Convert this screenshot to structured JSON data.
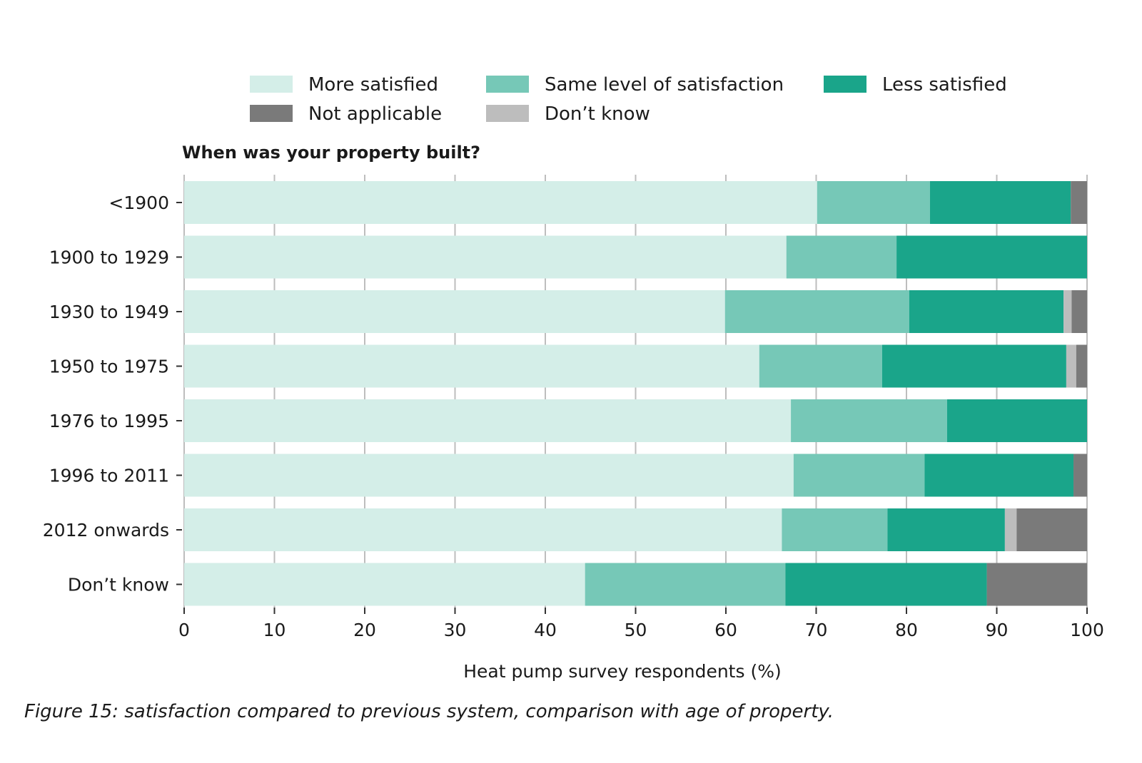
{
  "chart_data": {
    "type": "bar",
    "orientation": "horizontal",
    "stacked": true,
    "title": "When was your property built?",
    "xlabel": "Heat pump survey respondents (%)",
    "ylabel": "",
    "xlim": [
      0,
      100
    ],
    "xticks": [
      "0",
      "10",
      "20",
      "30",
      "40",
      "50",
      "60",
      "70",
      "80",
      "90",
      "100"
    ],
    "xtick_values": [
      0,
      10,
      20,
      30,
      40,
      50,
      60,
      70,
      80,
      90,
      100
    ],
    "grid": true,
    "legend_position": "top",
    "categories": [
      "<1900",
      "1900 to 1929",
      "1930 to 1949",
      "1950 to 1975",
      "1976 to 1995",
      "1996 to 2011",
      "2012 onwards",
      "Don’t know"
    ],
    "series": [
      {
        "name": "More satisfied",
        "color": "#d4eee8",
        "values": [
          70.1,
          66.7,
          59.9,
          63.7,
          67.2,
          67.5,
          66.2,
          44.4
        ]
      },
      {
        "name": "Same level of satisfaction",
        "color": "#76c8b7",
        "values": [
          12.5,
          12.2,
          20.4,
          13.6,
          17.3,
          14.5,
          11.7,
          22.2
        ]
      },
      {
        "name": "Less satisfied",
        "color": "#1aa58a",
        "values": [
          15.6,
          21.1,
          17.1,
          20.4,
          15.5,
          16.5,
          13.0,
          22.3
        ]
      },
      {
        "name": "Don’t know",
        "color": "#bdbdbd",
        "values": [
          0,
          0,
          0.9,
          1.1,
          0,
          0,
          1.3,
          0
        ]
      },
      {
        "name": "Not applicable",
        "color": "#7a7a7a",
        "values": [
          1.8,
          0,
          1.7,
          1.2,
          0,
          1.5,
          7.8,
          11.1
        ]
      }
    ],
    "legend_entries": [
      {
        "name": "More satisfied",
        "color": "#d4eee8"
      },
      {
        "name": "Same level of satisfaction",
        "color": "#76c8b7"
      },
      {
        "name": "Less satisfied",
        "color": "#1aa58a"
      },
      {
        "name": "Not applicable",
        "color": "#7a7a7a"
      },
      {
        "name": "Don’t know",
        "color": "#bdbdbd"
      }
    ]
  },
  "caption": "Figure 15: satisfaction compared to previous system, comparison with age of property."
}
